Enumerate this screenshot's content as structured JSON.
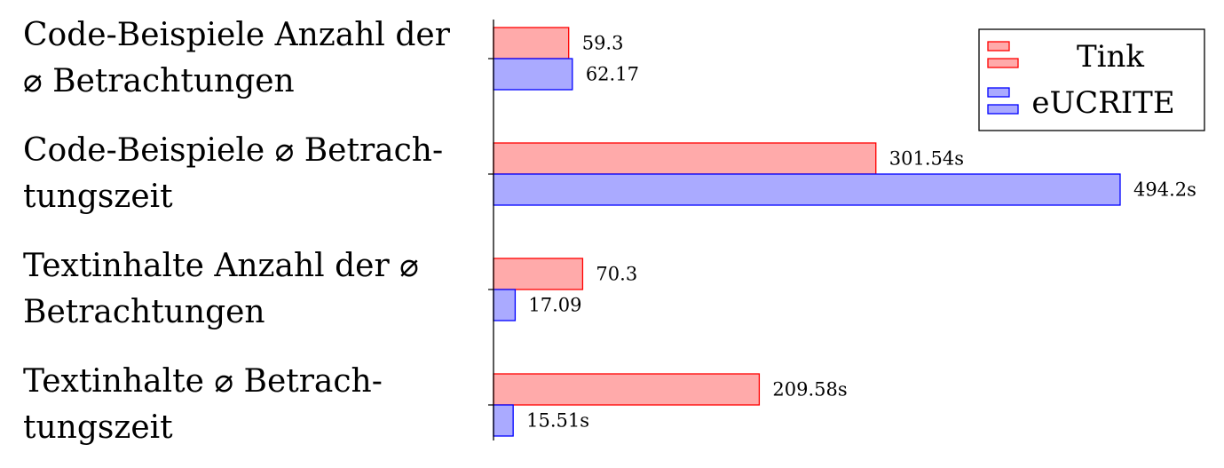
{
  "chart_data": {
    "type": "bar",
    "orientation": "horizontal",
    "title": "",
    "xlabel": "",
    "ylabel": "",
    "categories": [
      "Code-Beispiele Anzahl der ⌀ Betrachtungen",
      "Code-Beispiele ⌀ Betrach-tungszeit",
      "Textinhalte Anzahl der ⌀ Betrachtungen",
      "Textinhalte ⌀ Betrach-tungszeit"
    ],
    "category_lines": [
      [
        "Code-Beispiele Anzahl der",
        "⌀ Betrachtungen"
      ],
      [
        "Code-Beispiele ⌀ Betrach-",
        "tungszeit"
      ],
      [
        "Textinhalte Anzahl der ⌀",
        "Betrachtungen"
      ],
      [
        "Textinhalte ⌀ Betrach-",
        "tungszeit"
      ]
    ],
    "series": [
      {
        "name": "Tink",
        "color": "#ff0000",
        "fill": "#ffaaaa",
        "values": [
          59.3,
          301.54,
          70.3,
          209.58
        ],
        "labels": [
          "59.3",
          "301.54s",
          "70.3",
          "209.58s"
        ]
      },
      {
        "name": "eUCRITE",
        "color": "#0000ff",
        "fill": "#aaaaff",
        "values": [
          62.17,
          494.2,
          17.09,
          15.51
        ],
        "labels": [
          "62.17",
          "494.2s",
          "17.09",
          "15.51s"
        ]
      }
    ],
    "xlim": [
      0,
      494.2
    ],
    "grid": false,
    "legend_position": "top-right"
  }
}
